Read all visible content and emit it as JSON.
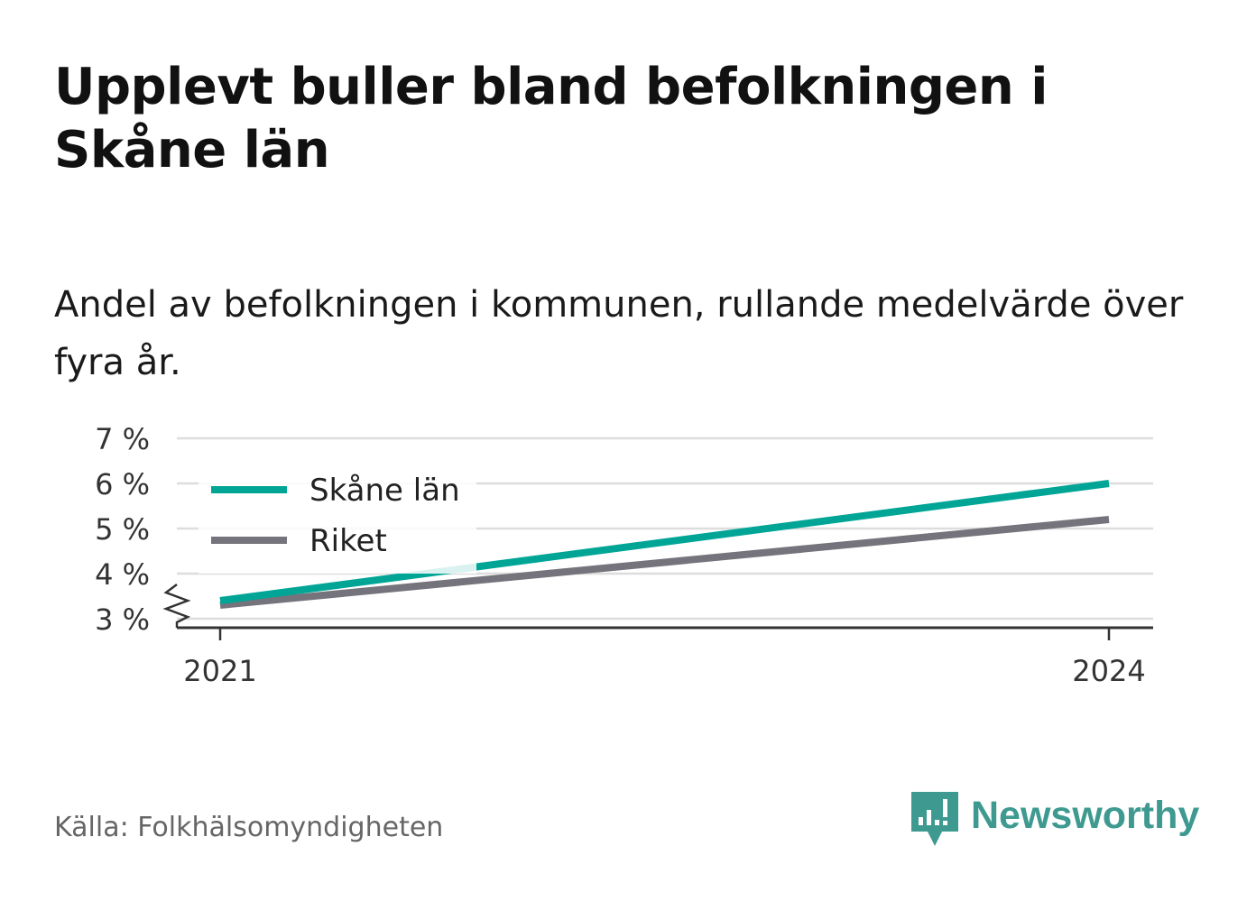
{
  "title": "Upplevt buller bland befolkningen i Skåne län",
  "subtitle": "Andel av befolkningen i kommunen, rullande medelvärde över fyra år.",
  "source": "Källa: Folkhälsomyndigheten",
  "brand": {
    "name": "Newsworthy",
    "icon": "bar-chart-speech-bubble-icon",
    "color": "#3e9a90"
  },
  "chart_data": {
    "type": "line",
    "x": [
      2021,
      2024
    ],
    "xticks": [
      "2021",
      "2024"
    ],
    "yticks": [
      "3 %",
      "4 %",
      "5 %",
      "6 %",
      "7 %"
    ],
    "ytick_values": [
      3,
      4,
      5,
      6,
      7
    ],
    "ylim": [
      3,
      7
    ],
    "y_axis_break": true,
    "grid": true,
    "legend_position": "top-left",
    "series": [
      {
        "name": "Skåne län",
        "color": "#00a596",
        "values": [
          3.4,
          6.0
        ]
      },
      {
        "name": "Riket",
        "color": "#75737b",
        "values": [
          3.3,
          5.2
        ]
      }
    ]
  }
}
